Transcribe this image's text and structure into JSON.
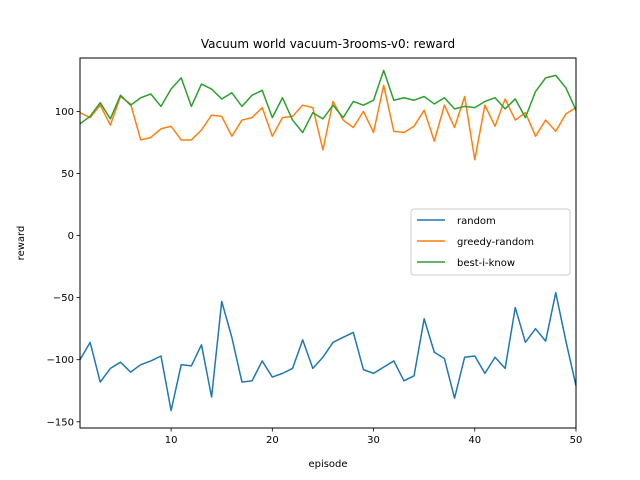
{
  "chart_data": {
    "type": "line",
    "title": "Vacuum world vacuum-3rooms-v0: reward",
    "xlabel": "episode",
    "ylabel": "reward",
    "xlim": [
      1,
      50
    ],
    "ylim": [
      -155,
      143
    ],
    "xticks": [
      10,
      20,
      30,
      40,
      50
    ],
    "yticks": [
      -150,
      -100,
      -50,
      0,
      50,
      100
    ],
    "grid": false,
    "legend": "center-right",
    "x": [
      1,
      2,
      3,
      4,
      5,
      6,
      7,
      8,
      9,
      10,
      11,
      12,
      13,
      14,
      15,
      16,
      17,
      18,
      19,
      20,
      21,
      22,
      23,
      24,
      25,
      26,
      27,
      28,
      29,
      30,
      31,
      32,
      33,
      34,
      35,
      36,
      37,
      38,
      39,
      40,
      41,
      42,
      43,
      44,
      45,
      46,
      47,
      48,
      49,
      50
    ],
    "series": [
      {
        "name": "random",
        "color": "#1f77b4",
        "values": [
          -100,
          -86,
          -118,
          -107,
          -102,
          -110,
          -104,
          -101,
          -97,
          -141,
          -104,
          -105,
          -88,
          -130,
          -53,
          -82,
          -118,
          -117,
          -101,
          -114,
          -111,
          -107,
          -84,
          -107,
          -98,
          -86,
          -82,
          -78,
          -108,
          -111,
          -106,
          -101,
          -117,
          -113,
          -67,
          -94,
          -99,
          -131,
          -98,
          -97,
          -111,
          -98,
          -107,
          -58,
          -86,
          -75,
          -85,
          -46,
          -85,
          -121
        ]
      },
      {
        "name": "greedy-random",
        "color": "#ff7f0e",
        "values": [
          99,
          95,
          105,
          89,
          112,
          106,
          77,
          79,
          86,
          88,
          77,
          77,
          85,
          97,
          96,
          80,
          93,
          95,
          103,
          80,
          95,
          96,
          105,
          103,
          69,
          108,
          93,
          87,
          100,
          83,
          121,
          84,
          83,
          88,
          101,
          76,
          105,
          87,
          112,
          61,
          105,
          88,
          110,
          93,
          99,
          80,
          93,
          84,
          98,
          103
        ]
      },
      {
        "name": "best-i-know",
        "color": "#2ca02c",
        "values": [
          90,
          96,
          107,
          94,
          113,
          105,
          111,
          114,
          104,
          118,
          127,
          104,
          122,
          118,
          110,
          115,
          104,
          113,
          117,
          95,
          111,
          93,
          83,
          99,
          94,
          105,
          95,
          108,
          105,
          109,
          133,
          109,
          111,
          109,
          112,
          106,
          111,
          102,
          104,
          103,
          108,
          111,
          102,
          110,
          95,
          116,
          127,
          129,
          119,
          101
        ]
      }
    ]
  }
}
